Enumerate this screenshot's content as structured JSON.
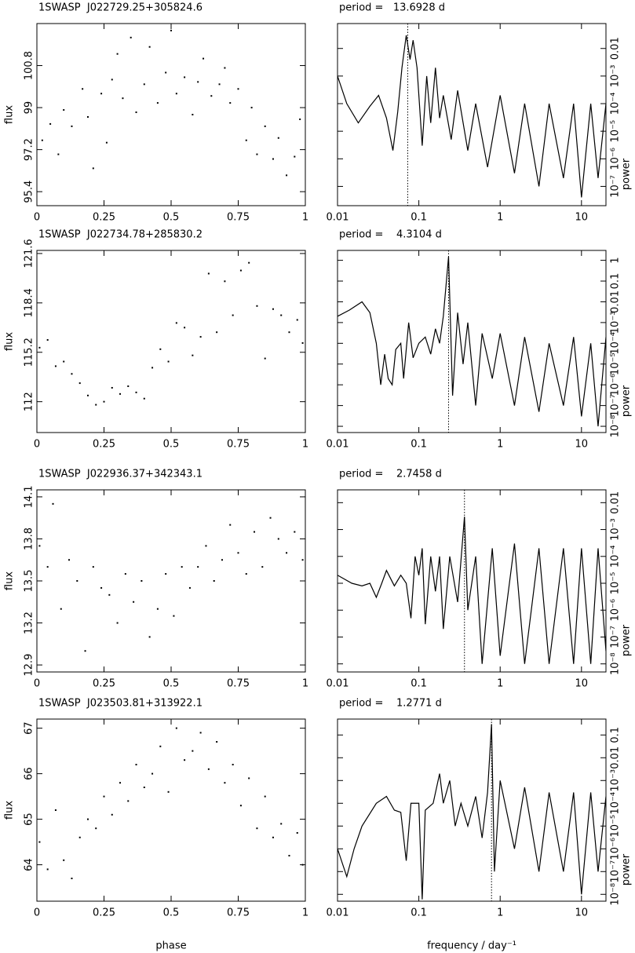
{
  "chart_data": [
    {
      "type": "scatter",
      "title": "1SWASP  J022729.25+305824.6",
      "ylabel": "flux",
      "color": "#000000",
      "x": [
        0.02,
        0.05,
        0.08,
        0.1,
        0.13,
        0.17,
        0.19,
        0.21,
        0.24,
        0.26,
        0.28,
        0.3,
        0.32,
        0.35,
        0.37,
        0.4,
        0.42,
        0.45,
        0.48,
        0.5,
        0.52,
        0.55,
        0.58,
        0.6,
        0.62,
        0.65,
        0.68,
        0.7,
        0.72,
        0.75,
        0.78,
        0.8,
        0.82,
        0.85,
        0.88,
        0.9,
        0.93,
        0.96,
        0.98
      ],
      "values": [
        97.6,
        98.3,
        97.0,
        98.9,
        98.2,
        99.8,
        98.6,
        96.4,
        99.6,
        97.5,
        100.2,
        101.3,
        99.4,
        102.0,
        98.8,
        100.0,
        101.6,
        99.2,
        100.5,
        102.3,
        99.6,
        100.3,
        98.7,
        100.1,
        101.1,
        99.5,
        100.0,
        100.7,
        99.2,
        99.8,
        97.6,
        99.0,
        97.0,
        98.2,
        96.8,
        97.7,
        96.1,
        96.9,
        98.5
      ],
      "xlim": [
        0,
        1
      ],
      "xticks": [
        0,
        0.25,
        0.5,
        0.75,
        1
      ],
      "ylim": [
        94.8,
        102.6
      ],
      "yticks": [
        95.4,
        97.2,
        99,
        100.8
      ]
    },
    {
      "type": "line",
      "title": "period =   13.6928 d",
      "ylabel": "power",
      "color": "#000000",
      "xlog": true,
      "ylog": true,
      "vline": 0.073,
      "x": [
        0.01,
        0.013,
        0.018,
        0.025,
        0.032,
        0.04,
        0.048,
        0.055,
        0.062,
        0.07,
        0.078,
        0.085,
        0.095,
        0.11,
        0.125,
        0.14,
        0.16,
        0.18,
        0.2,
        0.25,
        0.3,
        0.4,
        0.5,
        0.7,
        1,
        1.5,
        2,
        3,
        4,
        6,
        8,
        10,
        13,
        16,
        20
      ],
      "values": [
        0.001,
        0.0001,
        2e-05,
        8e-05,
        0.0002,
        3e-05,
        2e-06,
        5e-05,
        0.002,
        0.03,
        0.004,
        0.02,
        0.002,
        3e-06,
        0.001,
        2e-05,
        0.002,
        3e-05,
        0.0002,
        5e-06,
        0.0003,
        2e-06,
        0.0001,
        5e-07,
        0.0002,
        3e-07,
        0.0001,
        1e-07,
        0.0001,
        2e-07,
        0.0001,
        4e-08,
        0.0001,
        2e-07,
        0.0001
      ],
      "xlim": [
        0.01,
        20
      ],
      "xticks": [
        0.01,
        0.1,
        1,
        10
      ],
      "ylim": [
        2e-08,
        0.08
      ],
      "yticks": [
        {
          "value": 1e-07,
          "label": "10⁻⁷"
        },
        {
          "value": 1e-06,
          "label": "10⁻⁶"
        },
        {
          "value": 1e-05,
          "label": "10⁻⁵"
        },
        {
          "value": 0.0001,
          "label": "10⁻⁴"
        },
        {
          "value": 0.001,
          "label": "10⁻³"
        },
        0.01
      ]
    },
    {
      "type": "scatter",
      "title": "1SWASP  J022734.78+285830.2",
      "ylabel": "flux",
      "color": "#000000",
      "x": [
        0.01,
        0.04,
        0.07,
        0.1,
        0.13,
        0.16,
        0.19,
        0.22,
        0.25,
        0.28,
        0.31,
        0.34,
        0.37,
        0.4,
        0.43,
        0.46,
        0.49,
        0.52,
        0.55,
        0.58,
        0.61,
        0.64,
        0.67,
        0.7,
        0.73,
        0.76,
        0.79,
        0.82,
        0.85,
        0.88,
        0.91,
        0.94,
        0.97,
        0.99
      ],
      "values": [
        115.5,
        116.0,
        114.3,
        114.6,
        113.8,
        113.2,
        112.4,
        111.8,
        112.0,
        112.9,
        112.5,
        113.0,
        112.6,
        112.2,
        114.2,
        115.4,
        114.6,
        117.1,
        116.8,
        115.0,
        116.2,
        120.3,
        116.5,
        119.8,
        117.6,
        120.5,
        121.0,
        118.2,
        114.8,
        118.0,
        117.6,
        116.5,
        117.3,
        115.8
      ],
      "xlim": [
        0,
        1
      ],
      "xticks": [
        0,
        0.25,
        0.5,
        0.75,
        1
      ],
      "ylim": [
        110,
        121.8
      ],
      "yticks": [
        112,
        115.2,
        118.4,
        121.6
      ]
    },
    {
      "type": "line",
      "title": "period =    4.3104 d",
      "ylabel": "power",
      "color": "#000000",
      "xlog": true,
      "ylog": true,
      "vline": 0.232,
      "x": [
        0.01,
        0.014,
        0.02,
        0.025,
        0.03,
        0.034,
        0.038,
        0.042,
        0.047,
        0.052,
        0.06,
        0.065,
        0.075,
        0.085,
        0.1,
        0.12,
        0.14,
        0.16,
        0.18,
        0.2,
        0.232,
        0.26,
        0.3,
        0.35,
        0.4,
        0.5,
        0.6,
        0.8,
        1,
        1.5,
        2,
        3,
        4,
        6,
        8,
        10,
        13,
        16,
        20
      ],
      "values": [
        0.002,
        0.004,
        0.01,
        0.003,
        0.0001,
        1e-06,
        3e-05,
        2e-06,
        1e-06,
        5e-05,
        0.0001,
        2e-06,
        0.001,
        2e-05,
        0.0001,
        0.0002,
        3e-05,
        0.0005,
        0.0001,
        0.002,
        1.5,
        3e-07,
        0.003,
        1e-05,
        0.001,
        1e-07,
        0.0003,
        2e-06,
        0.0003,
        1e-07,
        0.0002,
        5e-08,
        0.0001,
        1e-07,
        0.0002,
        3e-08,
        0.0001,
        1e-08,
        0.0002
      ],
      "xlim": [
        0.01,
        20
      ],
      "xticks": [
        0.01,
        0.1,
        1,
        10
      ],
      "ylim": [
        5e-09,
        3
      ],
      "yticks": [
        {
          "value": 1e-08,
          "label": "10⁻⁸"
        },
        {
          "value": 1e-07,
          "label": "10⁻⁷"
        },
        {
          "value": 1e-06,
          "label": "10⁻⁶"
        },
        {
          "value": 1e-05,
          "label": "10⁻⁵"
        },
        {
          "value": 0.0001,
          "label": "10⁻⁴"
        },
        {
          "value": 0.001,
          "label": "10⁻³"
        },
        0.01,
        0.1,
        1
      ]
    },
    {
      "type": "scatter",
      "title": "1SWASP  J022936.37+342343.1",
      "ylabel": "flux",
      "color": "#000000",
      "x": [
        0.01,
        0.04,
        0.06,
        0.09,
        0.12,
        0.15,
        0.18,
        0.21,
        0.24,
        0.27,
        0.3,
        0.33,
        0.36,
        0.39,
        0.42,
        0.45,
        0.48,
        0.51,
        0.54,
        0.57,
        0.6,
        0.63,
        0.66,
        0.69,
        0.72,
        0.75,
        0.78,
        0.81,
        0.84,
        0.87,
        0.9,
        0.93,
        0.96,
        0.99
      ],
      "values": [
        13.75,
        13.6,
        14.05,
        13.3,
        13.65,
        13.5,
        13.0,
        13.6,
        13.45,
        13.4,
        13.2,
        13.55,
        13.35,
        13.5,
        13.1,
        13.3,
        13.55,
        13.25,
        13.6,
        13.45,
        13.6,
        13.75,
        13.5,
        13.65,
        13.9,
        13.7,
        13.55,
        13.85,
        13.6,
        13.95,
        13.8,
        13.7,
        13.85,
        13.65
      ],
      "xlim": [
        0,
        1
      ],
      "xticks": [
        0,
        0.25,
        0.5,
        0.75,
        1
      ],
      "ylim": [
        12.85,
        14.15
      ],
      "yticks": [
        12.9,
        13.2,
        13.5,
        13.8,
        14.1
      ]
    },
    {
      "type": "line",
      "title": "period =    2.7458 d",
      "ylabel": "power",
      "color": "#000000",
      "xlog": true,
      "ylog": true,
      "vline": 0.364,
      "x": [
        0.01,
        0.015,
        0.02,
        0.025,
        0.03,
        0.035,
        0.04,
        0.05,
        0.06,
        0.07,
        0.08,
        0.09,
        0.1,
        0.11,
        0.12,
        0.14,
        0.16,
        0.18,
        0.2,
        0.24,
        0.3,
        0.364,
        0.4,
        0.5,
        0.6,
        0.8,
        1,
        1.5,
        2,
        3,
        4,
        6,
        8,
        10,
        13,
        16,
        20
      ],
      "values": [
        2e-05,
        1e-05,
        8e-06,
        1e-05,
        3e-06,
        1e-05,
        3e-05,
        8e-06,
        2e-05,
        1e-05,
        5e-07,
        0.0001,
        2e-05,
        0.0002,
        3e-07,
        0.0001,
        5e-06,
        0.0001,
        2e-07,
        0.0001,
        2e-06,
        0.003,
        1e-06,
        0.0001,
        1e-08,
        0.0002,
        2e-08,
        0.0003,
        1e-08,
        0.0002,
        1e-08,
        0.0002,
        1e-08,
        0.0002,
        1e-08,
        0.0002,
        3e-08
      ],
      "xlim": [
        0.01,
        20
      ],
      "xticks": [
        0.01,
        0.1,
        1,
        10
      ],
      "ylim": [
        5e-09,
        0.03
      ],
      "yticks": [
        {
          "value": 1e-08,
          "label": "10⁻⁸"
        },
        {
          "value": 1e-07,
          "label": "10⁻⁷"
        },
        {
          "value": 1e-06,
          "label": "10⁻⁶"
        },
        {
          "value": 1e-05,
          "label": "10⁻⁵"
        },
        {
          "value": 0.0001,
          "label": "10⁻⁴"
        },
        {
          "value": 0.001,
          "label": "10⁻³"
        },
        0.01
      ]
    },
    {
      "type": "scatter",
      "title": "1SWASP  J023503.81+313922.1",
      "ylabel": "flux",
      "xlabel": "phase",
      "color": "#000000",
      "x": [
        0.01,
        0.04,
        0.07,
        0.1,
        0.13,
        0.16,
        0.19,
        0.22,
        0.25,
        0.28,
        0.31,
        0.34,
        0.37,
        0.4,
        0.43,
        0.46,
        0.49,
        0.52,
        0.55,
        0.58,
        0.61,
        0.64,
        0.67,
        0.7,
        0.73,
        0.76,
        0.79,
        0.82,
        0.85,
        0.88,
        0.91,
        0.94,
        0.97,
        0.99
      ],
      "values": [
        64.5,
        63.9,
        65.2,
        64.1,
        63.7,
        64.6,
        65.0,
        64.8,
        65.5,
        65.1,
        65.8,
        65.4,
        66.2,
        65.7,
        66.0,
        66.6,
        65.6,
        67.0,
        66.3,
        66.5,
        66.9,
        66.1,
        66.7,
        65.8,
        66.2,
        65.3,
        65.9,
        64.8,
        65.5,
        64.6,
        64.9,
        64.2,
        64.7,
        64.0
      ],
      "xlim": [
        0,
        1
      ],
      "xticks": [
        0,
        0.25,
        0.5,
        0.75,
        1
      ],
      "ylim": [
        63.2,
        67.2
      ],
      "yticks": [
        64,
        65,
        66,
        67
      ]
    },
    {
      "type": "line",
      "title": "period =    1.2771 d",
      "ylabel": "power",
      "xlabel": "frequency / day⁻¹",
      "color": "#000000",
      "xlog": true,
      "ylog": true,
      "vline": 0.783,
      "x": [
        0.01,
        0.013,
        0.016,
        0.02,
        0.03,
        0.04,
        0.05,
        0.06,
        0.07,
        0.08,
        0.1,
        0.11,
        0.12,
        0.15,
        0.18,
        0.2,
        0.24,
        0.28,
        0.33,
        0.4,
        0.5,
        0.6,
        0.7,
        0.783,
        0.85,
        1,
        1.5,
        2,
        3,
        4,
        6,
        8,
        10,
        13,
        16,
        20
      ],
      "values": [
        1e-06,
        6e-08,
        1e-06,
        1e-05,
        0.0001,
        0.0002,
        5e-05,
        4e-05,
        3e-07,
        0.0001,
        0.0001,
        6e-09,
        5e-05,
        0.0001,
        0.002,
        0.0001,
        0.001,
        1e-05,
        0.0001,
        1e-05,
        0.0002,
        3e-06,
        0.0003,
        0.3,
        1e-07,
        0.001,
        1e-06,
        0.0005,
        1e-07,
        0.0003,
        1e-07,
        0.0003,
        1e-08,
        0.0003,
        1e-07,
        0.0002
      ],
      "xlim": [
        0.01,
        20
      ],
      "xticks": [
        0.01,
        0.1,
        1,
        10
      ],
      "ylim": [
        5e-09,
        0.5
      ],
      "yticks": [
        {
          "value": 1e-08,
          "label": "10⁻⁸"
        },
        {
          "value": 1e-07,
          "label": "10⁻⁷"
        },
        {
          "value": 1e-06,
          "label": "10⁻⁶"
        },
        {
          "value": 1e-05,
          "label": "10⁻⁵"
        },
        {
          "value": 0.0001,
          "label": "10⁻⁴"
        },
        {
          "value": 0.001,
          "label": "10⁻³"
        },
        0.01,
        0.1
      ]
    }
  ]
}
